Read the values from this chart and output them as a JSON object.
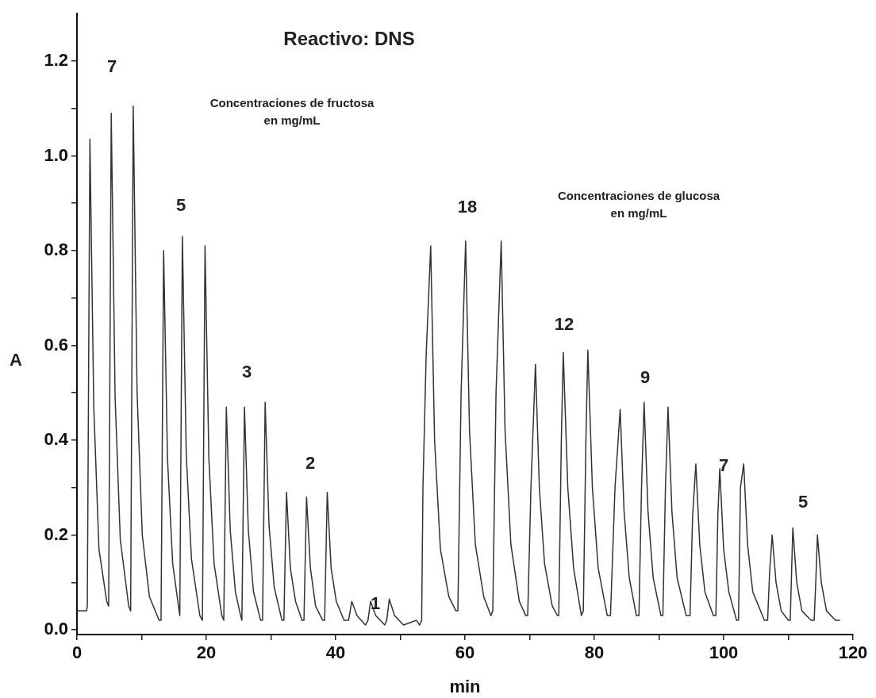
{
  "chart_data": {
    "type": "line",
    "title": "Reactivo: DNS",
    "xlabel": "min",
    "ylabel": "A",
    "xlim": [
      0,
      120
    ],
    "ylim": [
      -0.01,
      1.3
    ],
    "xticks": [
      0,
      {
        "value": 10,
        "label": null
      },
      20,
      {
        "value": 30,
        "label": null
      },
      40,
      {
        "value": 50,
        "label": null
      },
      60,
      {
        "value": 70,
        "label": null
      },
      80,
      {
        "value": 90,
        "label": null
      },
      100,
      {
        "value": 110,
        "label": null
      },
      120
    ],
    "yticks": [
      {
        "value": 0,
        "label": "0.0"
      },
      {
        "value": 0.1,
        "label": null
      },
      0.2,
      {
        "value": 0.3,
        "label": null
      },
      0.4,
      {
        "value": 0.5,
        "label": null
      },
      0.6,
      {
        "value": 0.7,
        "label": null
      },
      0.8,
      {
        "value": 0.9,
        "label": null
      },
      {
        "value": 1,
        "label": "1.0"
      },
      {
        "value": 1.1,
        "label": null
      },
      1.2
    ],
    "marker": "none",
    "line_style": "solid",
    "legend": false,
    "annotations": [
      "Concentraciones de fructosa\nen mg/mL",
      "Concentraciones de glucosa\nen mg/mL",
      "7",
      "5",
      "3",
      "2",
      "1",
      "18",
      "12",
      "9",
      "7",
      "5"
    ],
    "series": [
      {
        "color": "#333333",
        "x": [
          0,
          1.5,
          1.6,
          2.0,
          2.6,
          3.4,
          4.6,
          4.9,
          5.3,
          5.9,
          6.7,
          8.0,
          8.3,
          8.7,
          9.3,
          10.1,
          11.2,
          12.7,
          13.0,
          13.4,
          14.0,
          14.8,
          15.8,
          15.9,
          16.3,
          16.9,
          17.7,
          19.0,
          19.4,
          19.8,
          20.4,
          21.2,
          22.4,
          22.7,
          23.1,
          23.7,
          24.5,
          25.3,
          25.5,
          25.9,
          26.5,
          27.3,
          28.4,
          28.7,
          29.1,
          29.7,
          30.5,
          31.7,
          32.0,
          32.4,
          33.0,
          33.8,
          34.8,
          35.1,
          35.5,
          36.1,
          36.9,
          38.0,
          38.3,
          38.7,
          39.3,
          40.1,
          41.3,
          42.0,
          42.5,
          43.3,
          44.6,
          45.0,
          45.4,
          46.2,
          47.6,
          47.9,
          48.3,
          49.1,
          50.5,
          52.5,
          53.0,
          53.3,
          53.5,
          54.0,
          54.7,
          55.3,
          56.2,
          57.5,
          58.6,
          58.9,
          59.4,
          60.1,
          60.7,
          61.6,
          62.9,
          64.0,
          64.3,
          64.8,
          65.6,
          66.2,
          67.1,
          68.4,
          69.4,
          69.7,
          70.2,
          70.9,
          71.5,
          72.3,
          73.5,
          74.3,
          74.5,
          74.9,
          75.2,
          75.9,
          76.8,
          78.0,
          78.3,
          78.7,
          79.0,
          79.7,
          80.6,
          82.0,
          82.5,
          83.2,
          84.0,
          84.6,
          85.4,
          86.5,
          86.9,
          87.3,
          87.7,
          88.3,
          89.1,
          90.3,
          90.6,
          91.0,
          91.4,
          92.0,
          92.8,
          94.2,
          94.8,
          95.2,
          95.7,
          96.3,
          97.1,
          98.4,
          98.8,
          99.1,
          99.4,
          100.0,
          100.8,
          102.0,
          102.3,
          102.6,
          103.1,
          103.7,
          104.5,
          106.3,
          106.8,
          107.1,
          107.5,
          108.1,
          108.9,
          110.0,
          110.3,
          110.5,
          110.7,
          111.3,
          112.1,
          113.5,
          114.0,
          114.3,
          114.5,
          115.1,
          115.9,
          117.3,
          118.0
        ],
        "values": [
          0.04,
          0.04,
          0.05,
          1.035,
          0.47,
          0.17,
          0.06,
          0.05,
          1.09,
          0.49,
          0.19,
          0.05,
          0.04,
          1.105,
          0.5,
          0.2,
          0.07,
          0.02,
          0.02,
          0.8,
          0.36,
          0.14,
          0.04,
          0.03,
          0.83,
          0.37,
          0.15,
          0.03,
          0.02,
          0.81,
          0.36,
          0.14,
          0.03,
          0.02,
          0.47,
          0.21,
          0.08,
          0.03,
          0.02,
          0.47,
          0.21,
          0.08,
          0.02,
          0.02,
          0.48,
          0.22,
          0.09,
          0.02,
          0.02,
          0.29,
          0.13,
          0.06,
          0.02,
          0.02,
          0.28,
          0.13,
          0.05,
          0.02,
          0.02,
          0.29,
          0.13,
          0.06,
          0.02,
          0.02,
          0.06,
          0.03,
          0.01,
          0.02,
          0.06,
          0.03,
          0.01,
          0.02,
          0.065,
          0.03,
          0.01,
          0.02,
          0.01,
          0.02,
          0.3,
          0.58,
          0.81,
          0.4,
          0.17,
          0.07,
          0.04,
          0.04,
          0.5,
          0.82,
          0.42,
          0.18,
          0.07,
          0.03,
          0.04,
          0.5,
          0.82,
          0.42,
          0.18,
          0.06,
          0.03,
          0.03,
          0.3,
          0.56,
          0.3,
          0.14,
          0.05,
          0.03,
          0.03,
          0.4,
          0.585,
          0.3,
          0.13,
          0.03,
          0.04,
          0.4,
          0.59,
          0.3,
          0.13,
          0.03,
          0.03,
          0.3,
          0.465,
          0.25,
          0.11,
          0.03,
          0.03,
          0.3,
          0.48,
          0.25,
          0.11,
          0.03,
          0.03,
          0.3,
          0.47,
          0.25,
          0.11,
          0.03,
          0.03,
          0.24,
          0.35,
          0.18,
          0.08,
          0.03,
          0.03,
          0.24,
          0.34,
          0.17,
          0.08,
          0.02,
          0.02,
          0.3,
          0.35,
          0.18,
          0.08,
          0.02,
          0.02,
          0.12,
          0.2,
          0.1,
          0.04,
          0.02,
          0.02,
          0.12,
          0.215,
          0.1,
          0.04,
          0.02,
          0.02,
          0.12,
          0.2,
          0.1,
          0.04,
          0.02,
          0.02
        ]
      }
    ]
  }
}
